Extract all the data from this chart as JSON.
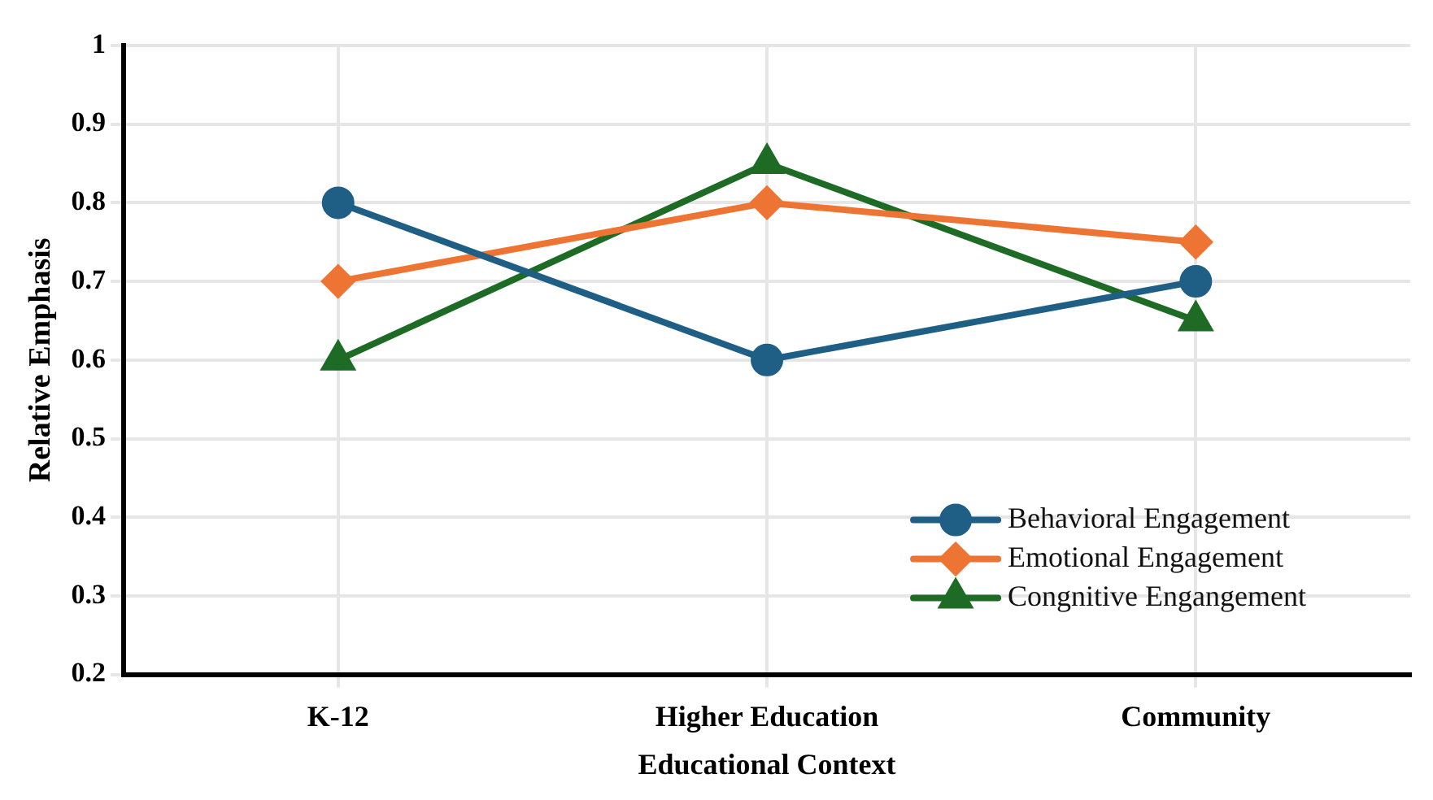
{
  "chart_data": {
    "type": "line",
    "xlabel": "Educational Context",
    "ylabel": "Relative Emphasis",
    "categories": [
      "K-12",
      "Higher Education",
      "Community"
    ],
    "series": [
      {
        "name": "Behavioral Engagement",
        "color": "#1f5f86",
        "values": [
          0.8,
          0.6,
          0.7
        ],
        "marker": "circle"
      },
      {
        "name": "Emotional Engagement",
        "color": "#ee7434",
        "values": [
          0.7,
          0.8,
          0.75
        ],
        "marker": "diamond"
      },
      {
        "name": "Congnitive Engangement",
        "color": "#1e6b26",
        "values": [
          0.6,
          0.85,
          0.65
        ],
        "marker": "triangle"
      }
    ],
    "ylim": [
      0.2,
      1
    ],
    "yticks": [
      0.2,
      0.3,
      0.4,
      0.5,
      0.6,
      0.7,
      0.8,
      0.9,
      1
    ],
    "grid": true,
    "legend": "bottom right",
    "line_style": "solid"
  }
}
